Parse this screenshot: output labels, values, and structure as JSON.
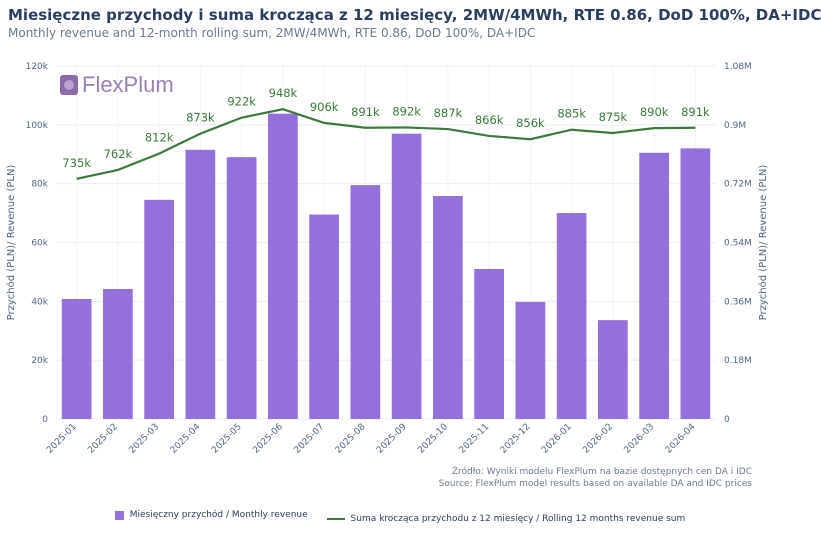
{
  "title": "Miesięczne przychody i suma krocząca z 12 miesięcy, 2MW/4MWh, RTE 0.86, DoD 100%, DA+IDC",
  "subtitle": "Monthly revenue and 12-month rolling sum, 2MW/4MWh, RTE 0.86, DoD 100%, DA+IDC",
  "logo": "FlexPlum",
  "source_line1": "Źródło: Wyniki modelu FlexPlum na bazie dostępnych cen DA i IDC",
  "source_line2": "Source: FlexPlum model results based on available DA and IDC prices",
  "colors": {
    "bar": "#9370DB",
    "line": "#3a7a3a",
    "title": "#2a3f5f"
  },
  "chart_data": {
    "type": "bar",
    "categories": [
      "2025-01",
      "2025-02",
      "2025-03",
      "2025-04",
      "2025-05",
      "2025-06",
      "2025-07",
      "2025-08",
      "2025-09",
      "2025-10",
      "2025-11",
      "2025-12",
      "2026-01",
      "2026-02",
      "2026-03",
      "2026-04"
    ],
    "series": [
      {
        "name": "Miesięczny przychód / Monthly revenue",
        "type": "bar",
        "axis": "left",
        "values": [
          40800,
          44200,
          74500,
          91500,
          89000,
          103800,
          69500,
          79500,
          97000,
          75800,
          51000,
          39800,
          70000,
          33600,
          90500,
          92000
        ]
      },
      {
        "name": "Suma krocząca przychodu z 12 miesięcy / Rolling 12 months revenue sum",
        "type": "line",
        "axis": "right",
        "values": [
          735000,
          762000,
          812000,
          873000,
          922000,
          948000,
          906000,
          891000,
          892000,
          887000,
          866000,
          856000,
          885000,
          875000,
          890000,
          891000
        ],
        "data_labels": [
          "735k",
          "762k",
          "812k",
          "873k",
          "922k",
          "948k",
          "906k",
          "891k",
          "892k",
          "887k",
          "866k",
          "856k",
          "885k",
          "875k",
          "890k",
          "891k"
        ]
      }
    ],
    "ylabel_left": "Przychód (PLN)/ Revenue (PLN)",
    "ylabel_right": "Przychód (PLN)/ Revenue (PLN)",
    "ylim_left": [
      0,
      120000
    ],
    "ylim_right": [
      0,
      1080000
    ],
    "yticks_left": [
      "0",
      "20k",
      "40k",
      "60k",
      "80k",
      "100k",
      "120k"
    ],
    "yticks_right": [
      "0",
      "0.18M",
      "0.36M",
      "0.54M",
      "0.72M",
      "0.9M",
      "1.08M"
    ],
    "grid": true,
    "legend": "bottom-center"
  }
}
